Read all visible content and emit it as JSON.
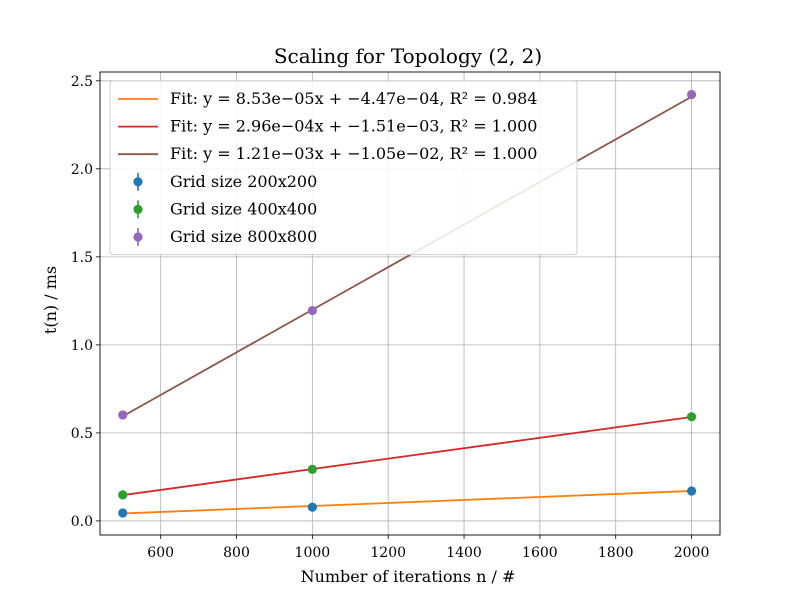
{
  "chart_data": {
    "type": "scatter",
    "title": "Scaling for Topology (2, 2)",
    "xlabel": "Number of iterations n / #",
    "ylabel": "t(n) / ms",
    "xlim": [
      440,
      2075
    ],
    "ylim": [
      -0.08,
      2.55
    ],
    "x_ticks": [
      600,
      800,
      1000,
      1200,
      1400,
      1600,
      1800,
      2000
    ],
    "y_ticks": [
      0.0,
      0.5,
      1.0,
      1.5,
      2.0,
      2.5
    ],
    "x_tick_labels": [
      "600",
      "800",
      "1000",
      "1200",
      "1400",
      "1600",
      "1800",
      "2000"
    ],
    "y_tick_labels": [
      "0.0",
      "0.5",
      "1.0",
      "1.5",
      "2.0",
      "2.5"
    ],
    "grid": true,
    "legend_position": "top-left",
    "fits": [
      {
        "label": "Fit: y = 8.53e−05x + −4.47e−04, R² = 0.984",
        "color": "#ff7f0e",
        "slope": 8.53e-05,
        "intercept": -0.000447
      },
      {
        "label": "Fit: y = 2.96e−04x + −1.51e−03, R² = 1.000",
        "color": "#d62728",
        "slope": 0.000296,
        "intercept": -0.00151
      },
      {
        "label": "Fit: y = 1.21e−03x + −1.05e−02, R² = 1.000",
        "color": "#8c564b",
        "slope": 0.00121,
        "intercept": -0.0105
      }
    ],
    "series": [
      {
        "name": "Grid size 200x200",
        "color": "#1f77b4",
        "x": [
          500,
          1000,
          2000
        ],
        "y": [
          0.045,
          0.078,
          0.17
        ]
      },
      {
        "name": "Grid size 400x400",
        "color": "#2ca02c",
        "x": [
          500,
          1000,
          2000
        ],
        "y": [
          0.148,
          0.293,
          0.592
        ]
      },
      {
        "name": "Grid size 800x800",
        "color": "#9467bd",
        "x": [
          500,
          1000,
          2000
        ],
        "y": [
          0.602,
          1.195,
          2.422
        ]
      }
    ]
  }
}
